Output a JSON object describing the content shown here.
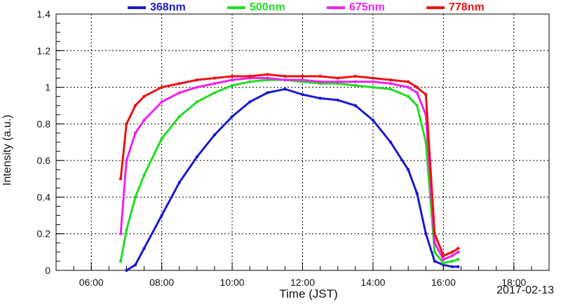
{
  "chart_data": {
    "type": "line",
    "title": "",
    "xlabel": "Time (JST)",
    "ylabel": "Intensity (a.u.)",
    "date": "2017-02-13",
    "xlim": [
      "05:00",
      "19:00"
    ],
    "ylim": [
      0,
      1.4
    ],
    "x_ticks": [
      "06:00",
      "08:00",
      "10:00",
      "12:00",
      "14:00",
      "16:00",
      "18:00"
    ],
    "y_ticks": [
      "0",
      "0.2",
      "0.4",
      "0.6",
      "0.8",
      "1",
      "1.2",
      "1.4"
    ],
    "grid": true,
    "legend_placement": "top",
    "x": [
      "06:50",
      "07:00",
      "07:15",
      "07:30",
      "08:00",
      "08:30",
      "09:00",
      "09:30",
      "10:00",
      "10:30",
      "11:00",
      "11:30",
      "12:00",
      "12:30",
      "13:00",
      "13:30",
      "14:00",
      "14:30",
      "15:00",
      "15:15",
      "15:30",
      "15:45",
      "16:00",
      "16:15",
      "16:25"
    ],
    "series": [
      {
        "name": "368nm",
        "color": "#1a1acc",
        "values": [
          null,
          0.0,
          0.03,
          0.12,
          0.3,
          0.48,
          0.62,
          0.74,
          0.84,
          0.92,
          0.97,
          0.99,
          0.96,
          0.94,
          0.93,
          0.9,
          0.82,
          0.7,
          0.55,
          0.42,
          0.2,
          0.05,
          0.03,
          0.02,
          0.02
        ]
      },
      {
        "name": "500nm",
        "color": "#22dd22",
        "values": [
          0.05,
          0.22,
          0.4,
          0.52,
          0.72,
          0.84,
          0.92,
          0.97,
          1.01,
          1.03,
          1.04,
          1.04,
          1.03,
          1.02,
          1.02,
          1.01,
          1.0,
          0.99,
          0.95,
          0.9,
          0.7,
          0.1,
          0.04,
          0.05,
          0.06
        ]
      },
      {
        "name": "675nm",
        "color": "#ee22ee",
        "values": [
          0.2,
          0.6,
          0.75,
          0.82,
          0.92,
          0.97,
          1.0,
          1.02,
          1.04,
          1.05,
          1.05,
          1.04,
          1.04,
          1.03,
          1.03,
          1.03,
          1.03,
          1.02,
          1.0,
          0.97,
          0.85,
          0.15,
          0.06,
          0.08,
          0.1
        ]
      },
      {
        "name": "778nm",
        "color": "#ee1111",
        "values": [
          0.5,
          0.8,
          0.9,
          0.95,
          1.0,
          1.02,
          1.04,
          1.05,
          1.06,
          1.06,
          1.07,
          1.06,
          1.06,
          1.06,
          1.05,
          1.06,
          1.05,
          1.04,
          1.03,
          1.0,
          0.96,
          0.2,
          0.08,
          0.1,
          0.12
        ]
      }
    ]
  }
}
